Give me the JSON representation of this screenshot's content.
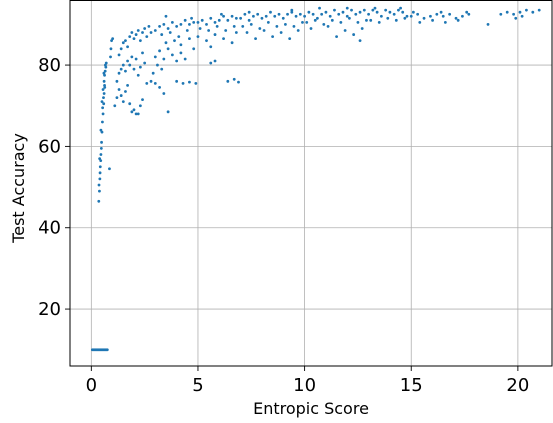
{
  "chart_data": {
    "type": "scatter",
    "title": "",
    "xlabel": "Entropic Score",
    "ylabel": "Test Accuracy",
    "xlim": [
      -1.0,
      21.6
    ],
    "ylim": [
      6.0,
      96.0
    ],
    "xticks": [
      0,
      5,
      10,
      15,
      20
    ],
    "yticks": [
      20,
      40,
      60,
      80
    ],
    "grid": true,
    "legend": "none",
    "marker_color": "#1f77b4",
    "series": [
      {
        "points": [
          [
            0.05,
            10.0
          ],
          [
            0.1,
            10.0
          ],
          [
            0.15,
            10.0
          ],
          [
            0.2,
            10.0
          ],
          [
            0.25,
            10.0
          ],
          [
            0.3,
            10.0
          ],
          [
            0.35,
            10.0
          ],
          [
            0.4,
            10.0
          ],
          [
            0.45,
            10.0
          ],
          [
            0.5,
            10.0
          ],
          [
            0.55,
            10.0
          ],
          [
            0.6,
            10.0
          ],
          [
            0.65,
            10.0
          ],
          [
            0.7,
            10.0
          ],
          [
            0.75,
            10.0
          ],
          [
            0.35,
            46.5
          ],
          [
            0.38,
            49.0
          ],
          [
            0.4,
            52.0
          ],
          [
            0.42,
            55.0
          ],
          [
            0.45,
            58.0
          ],
          [
            0.36,
            50.5
          ],
          [
            0.41,
            53.5
          ],
          [
            0.44,
            56.5
          ],
          [
            0.47,
            59.5
          ],
          [
            0.39,
            57.0
          ],
          [
            0.48,
            61.0
          ],
          [
            0.5,
            63.5
          ],
          [
            0.52,
            66.0
          ],
          [
            0.55,
            68.0
          ],
          [
            0.58,
            70.5
          ],
          [
            0.6,
            73.0
          ],
          [
            0.62,
            75.0
          ],
          [
            0.45,
            64.0
          ],
          [
            0.53,
            69.5
          ],
          [
            0.57,
            72.0
          ],
          [
            0.6,
            76.0
          ],
          [
            0.62,
            77.5
          ],
          [
            0.65,
            78.5
          ],
          [
            0.68,
            79.5
          ],
          [
            0.7,
            80.5
          ],
          [
            0.55,
            74.0
          ],
          [
            0.59,
            78.0
          ],
          [
            0.66,
            80.0
          ],
          [
            0.5,
            71.0
          ],
          [
            0.63,
            74.5
          ],
          [
            0.85,
            54.5
          ],
          [
            0.9,
            82.0
          ],
          [
            0.95,
            86.0
          ],
          [
            1.0,
            86.5
          ],
          [
            0.92,
            84.0
          ],
          [
            1.1,
            70.0
          ],
          [
            1.2,
            72.0
          ],
          [
            1.3,
            74.0
          ],
          [
            1.4,
            72.5
          ],
          [
            1.5,
            71.0
          ],
          [
            1.6,
            73.5
          ],
          [
            1.7,
            75.0
          ],
          [
            1.8,
            70.5
          ],
          [
            1.9,
            68.5
          ],
          [
            2.0,
            69.0
          ],
          [
            2.1,
            68.0
          ],
          [
            2.2,
            68.0
          ],
          [
            2.3,
            70.0
          ],
          [
            2.4,
            71.5
          ],
          [
            1.2,
            76.0
          ],
          [
            1.3,
            78.0
          ],
          [
            1.4,
            79.0
          ],
          [
            1.5,
            80.0
          ],
          [
            1.6,
            78.5
          ],
          [
            1.7,
            81.0
          ],
          [
            1.8,
            80.0
          ],
          [
            1.9,
            82.0
          ],
          [
            2.0,
            79.0
          ],
          [
            2.1,
            81.5
          ],
          [
            2.2,
            77.5
          ],
          [
            2.3,
            79.5
          ],
          [
            2.4,
            83.0
          ],
          [
            2.5,
            80.5
          ],
          [
            1.3,
            82.5
          ],
          [
            1.4,
            84.0
          ],
          [
            1.5,
            85.5
          ],
          [
            1.6,
            86.0
          ],
          [
            1.7,
            84.5
          ],
          [
            1.8,
            87.0
          ],
          [
            1.9,
            88.0
          ],
          [
            2.0,
            86.5
          ],
          [
            2.1,
            87.5
          ],
          [
            2.2,
            88.5
          ],
          [
            2.3,
            86.0
          ],
          [
            2.4,
            88.0
          ],
          [
            2.5,
            89.0
          ],
          [
            2.6,
            87.0
          ],
          [
            2.7,
            89.5
          ],
          [
            2.8,
            88.0
          ],
          [
            2.6,
            75.5
          ],
          [
            2.8,
            76.0
          ],
          [
            3.0,
            75.5
          ],
          [
            3.2,
            74.5
          ],
          [
            3.4,
            73.0
          ],
          [
            3.6,
            68.5
          ],
          [
            2.9,
            78.0
          ],
          [
            3.1,
            80.0
          ],
          [
            3.3,
            79.0
          ],
          [
            3.0,
            82.0
          ],
          [
            3.2,
            83.5
          ],
          [
            3.4,
            81.5
          ],
          [
            3.6,
            84.0
          ],
          [
            3.8,
            82.5
          ],
          [
            4.0,
            81.0
          ],
          [
            4.2,
            83.0
          ],
          [
            4.4,
            81.5
          ],
          [
            3.5,
            85.5
          ],
          [
            3.9,
            86.0
          ],
          [
            3.0,
            88.5
          ],
          [
            3.2,
            89.5
          ],
          [
            3.4,
            90.0
          ],
          [
            3.6,
            89.0
          ],
          [
            3.8,
            90.5
          ],
          [
            4.0,
            89.5
          ],
          [
            4.2,
            90.0
          ],
          [
            4.4,
            91.0
          ],
          [
            4.6,
            90.0
          ],
          [
            4.8,
            90.5
          ],
          [
            3.3,
            87.5
          ],
          [
            3.7,
            88.0
          ],
          [
            4.1,
            87.0
          ],
          [
            4.5,
            88.5
          ],
          [
            4.2,
            85.0
          ],
          [
            4.6,
            86.5
          ],
          [
            5.0,
            87.0
          ],
          [
            5.4,
            86.0
          ],
          [
            5.8,
            87.5
          ],
          [
            6.2,
            86.5
          ],
          [
            6.6,
            85.5
          ],
          [
            6.8,
            88.0
          ],
          [
            4.8,
            84.0
          ],
          [
            5.6,
            84.5
          ],
          [
            4.0,
            76.0
          ],
          [
            4.3,
            75.5
          ],
          [
            4.6,
            75.8
          ],
          [
            4.9,
            75.5
          ],
          [
            6.4,
            76.0
          ],
          [
            6.7,
            76.5
          ],
          [
            6.9,
            75.8
          ],
          [
            5.6,
            80.5
          ],
          [
            5.8,
            81.0
          ],
          [
            5.0,
            90.5
          ],
          [
            5.2,
            91.0
          ],
          [
            5.4,
            90.0
          ],
          [
            5.6,
            91.5
          ],
          [
            5.8,
            90.5
          ],
          [
            6.0,
            91.0
          ],
          [
            6.2,
            92.0
          ],
          [
            6.4,
            91.0
          ],
          [
            6.6,
            92.0
          ],
          [
            6.8,
            91.5
          ],
          [
            5.1,
            89.0
          ],
          [
            5.5,
            88.5
          ],
          [
            5.9,
            89.5
          ],
          [
            6.3,
            88.5
          ],
          [
            6.7,
            89.5
          ],
          [
            7.0,
            91.5
          ],
          [
            7.2,
            92.5
          ],
          [
            7.4,
            91.0
          ],
          [
            7.6,
            92.0
          ],
          [
            7.8,
            92.5
          ],
          [
            8.0,
            91.5
          ],
          [
            8.2,
            92.0
          ],
          [
            8.4,
            93.0
          ],
          [
            8.6,
            92.0
          ],
          [
            8.8,
            92.5
          ],
          [
            9.0,
            91.5
          ],
          [
            9.2,
            92.5
          ],
          [
            9.4,
            93.0
          ],
          [
            9.6,
            92.0
          ],
          [
            9.8,
            92.5
          ],
          [
            7.1,
            89.5
          ],
          [
            7.5,
            90.0
          ],
          [
            7.9,
            89.0
          ],
          [
            8.3,
            90.5
          ],
          [
            8.7,
            89.5
          ],
          [
            9.1,
            90.0
          ],
          [
            9.5,
            89.5
          ],
          [
            9.9,
            90.5
          ],
          [
            7.3,
            88.0
          ],
          [
            8.1,
            88.5
          ],
          [
            8.9,
            88.0
          ],
          [
            9.7,
            88.5
          ],
          [
            7.7,
            86.5
          ],
          [
            8.5,
            87.0
          ],
          [
            9.3,
            86.5
          ],
          [
            10.0,
            92.0
          ],
          [
            10.2,
            93.0
          ],
          [
            10.4,
            92.5
          ],
          [
            10.6,
            91.5
          ],
          [
            10.8,
            92.5
          ],
          [
            11.0,
            93.0
          ],
          [
            11.2,
            92.0
          ],
          [
            11.4,
            93.5
          ],
          [
            11.6,
            92.5
          ],
          [
            11.8,
            93.0
          ],
          [
            12.0,
            92.0
          ],
          [
            12.2,
            93.5
          ],
          [
            12.4,
            92.5
          ],
          [
            12.6,
            93.0
          ],
          [
            12.8,
            93.5
          ],
          [
            10.1,
            90.5
          ],
          [
            10.5,
            91.0
          ],
          [
            10.9,
            90.0
          ],
          [
            11.3,
            91.0
          ],
          [
            11.7,
            90.5
          ],
          [
            12.1,
            91.5
          ],
          [
            12.5,
            90.5
          ],
          [
            12.9,
            91.0
          ],
          [
            10.3,
            89.0
          ],
          [
            11.1,
            89.5
          ],
          [
            11.9,
            88.5
          ],
          [
            12.7,
            89.0
          ],
          [
            12.3,
            87.5
          ],
          [
            12.6,
            86.0
          ],
          [
            11.5,
            87.0
          ],
          [
            13.0,
            92.5
          ],
          [
            13.2,
            93.5
          ],
          [
            13.4,
            93.0
          ],
          [
            13.6,
            92.0
          ],
          [
            13.8,
            93.5
          ],
          [
            14.0,
            93.0
          ],
          [
            14.2,
            92.5
          ],
          [
            14.4,
            93.5
          ],
          [
            14.6,
            93.0
          ],
          [
            14.8,
            92.0
          ],
          [
            13.1,
            91.0
          ],
          [
            13.5,
            90.5
          ],
          [
            13.9,
            91.5
          ],
          [
            14.3,
            91.0
          ],
          [
            14.7,
            91.5
          ],
          [
            15.0,
            92.0
          ],
          [
            15.3,
            92.5
          ],
          [
            15.6,
            91.5
          ],
          [
            15.9,
            92.0
          ],
          [
            16.2,
            92.5
          ],
          [
            16.5,
            92.0
          ],
          [
            16.8,
            92.5
          ],
          [
            17.1,
            91.5
          ],
          [
            17.4,
            92.0
          ],
          [
            17.7,
            92.5
          ],
          [
            15.4,
            90.5
          ],
          [
            16.0,
            91.0
          ],
          [
            16.6,
            90.5
          ],
          [
            17.2,
            91.0
          ],
          [
            18.6,
            90.0
          ],
          [
            19.2,
            92.5
          ],
          [
            19.5,
            93.0
          ],
          [
            19.8,
            92.5
          ],
          [
            20.1,
            93.0
          ],
          [
            20.4,
            93.5
          ],
          [
            20.7,
            93.0
          ],
          [
            21.0,
            93.5
          ],
          [
            20.2,
            92.0
          ],
          [
            19.9,
            91.5
          ],
          [
            3.5,
            92.0
          ],
          [
            4.7,
            91.5
          ],
          [
            6.1,
            92.5
          ],
          [
            7.4,
            93.0
          ],
          [
            9.4,
            93.5
          ],
          [
            10.7,
            94.0
          ],
          [
            12.0,
            94.0
          ],
          [
            13.3,
            94.0
          ],
          [
            14.5,
            94.0
          ],
          [
            15.1,
            93.0
          ],
          [
            16.4,
            93.0
          ],
          [
            17.6,
            93.0
          ]
        ]
      }
    ]
  }
}
